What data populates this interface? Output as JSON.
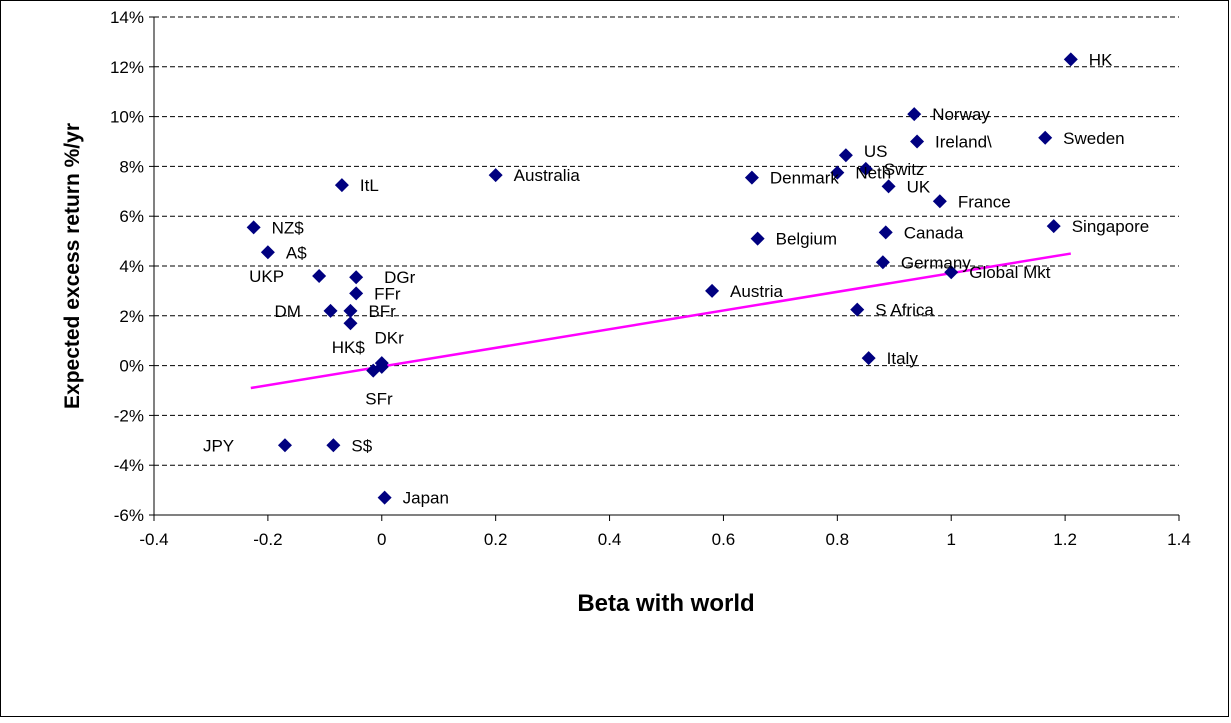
{
  "chart_data": {
    "type": "scatter",
    "title": "",
    "xlabel": "Beta with world",
    "ylabel": "Expected excess return %/yr",
    "xlim": [
      -0.4,
      1.4
    ],
    "ylim": [
      -6,
      14
    ],
    "x_ticks": [
      -0.4,
      -0.2,
      0,
      0.2,
      0.4,
      0.6,
      0.8,
      1,
      1.2,
      1.4
    ],
    "x_tick_labels": [
      "-0.4",
      "-0.2",
      "0",
      "0.2",
      "0.4",
      "0.6",
      "0.8",
      "1",
      "1.2",
      "1.4"
    ],
    "y_ticks": [
      -6,
      -4,
      -2,
      0,
      2,
      4,
      6,
      8,
      10,
      12,
      14
    ],
    "y_tick_labels": [
      "-6%",
      "-4%",
      "-2%",
      "0%",
      "2%",
      "4%",
      "6%",
      "8%",
      "10%",
      "12%",
      "14%"
    ],
    "grid": "horizontal dashed",
    "legend": "none",
    "marker_color": "#000080",
    "trendline_color": "#FF00FF",
    "trendline": {
      "x": [
        -0.23,
        1.21
      ],
      "y": [
        -0.9,
        4.5
      ]
    },
    "points": [
      {
        "label": "HK",
        "x": 1.21,
        "y": 12.3
      },
      {
        "label": "Norway",
        "x": 0.935,
        "y": 10.1
      },
      {
        "label": "Sweden",
        "x": 1.165,
        "y": 9.15
      },
      {
        "label": "Ireland\\",
        "x": 0.94,
        "y": 9.0
      },
      {
        "label": "US",
        "x": 0.815,
        "y": 8.45
      },
      {
        "label": "Switz",
        "x": 0.85,
        "y": 7.9
      },
      {
        "label": "Neth",
        "x": 0.8,
        "y": 7.75
      },
      {
        "label": "Denmark",
        "x": 0.65,
        "y": 7.55
      },
      {
        "label": "UK",
        "x": 0.89,
        "y": 7.2
      },
      {
        "label": "France",
        "x": 0.98,
        "y": 6.6
      },
      {
        "label": "Singapore",
        "x": 1.18,
        "y": 5.6
      },
      {
        "label": "Canada",
        "x": 0.885,
        "y": 5.35
      },
      {
        "label": "Belgium",
        "x": 0.66,
        "y": 5.1
      },
      {
        "label": "Germany",
        "x": 0.88,
        "y": 4.15
      },
      {
        "label": "Global Mkt",
        "x": 1.0,
        "y": 3.75
      },
      {
        "label": "Austria",
        "x": 0.58,
        "y": 3.0
      },
      {
        "label": "S Africa",
        "x": 0.835,
        "y": 2.25
      },
      {
        "label": "Italy",
        "x": 0.855,
        "y": 0.3
      },
      {
        "label": "Australia",
        "x": 0.2,
        "y": 7.65
      },
      {
        "label": "ItL",
        "x": -0.07,
        "y": 7.25
      },
      {
        "label": "NZ$",
        "x": -0.225,
        "y": 5.55
      },
      {
        "label": "A$",
        "x": -0.2,
        "y": 4.55
      },
      {
        "label": "UKP",
        "x": -0.11,
        "y": 3.6
      },
      {
        "label": "DGr",
        "x": -0.045,
        "y": 3.55
      },
      {
        "label": "FFr",
        "x": -0.045,
        "y": 2.9
      },
      {
        "label": "BFr",
        "x": -0.055,
        "y": 2.2
      },
      {
        "label": "DM",
        "x": -0.09,
        "y": 2.2
      },
      {
        "label": "DKr",
        "x": -0.055,
        "y": 1.7
      },
      {
        "label": "HK$",
        "x": 0.0,
        "y": 0.1
      },
      {
        "label": "SFr",
        "x": -0.015,
        "y": -0.2
      },
      {
        "label": "",
        "x": 0.0,
        "y": -0.05
      },
      {
        "label": "JPY",
        "x": -0.17,
        "y": -3.2
      },
      {
        "label": "S$",
        "x": -0.085,
        "y": -3.2
      },
      {
        "label": "Japan",
        "x": 0.005,
        "y": -5.3
      }
    ]
  }
}
